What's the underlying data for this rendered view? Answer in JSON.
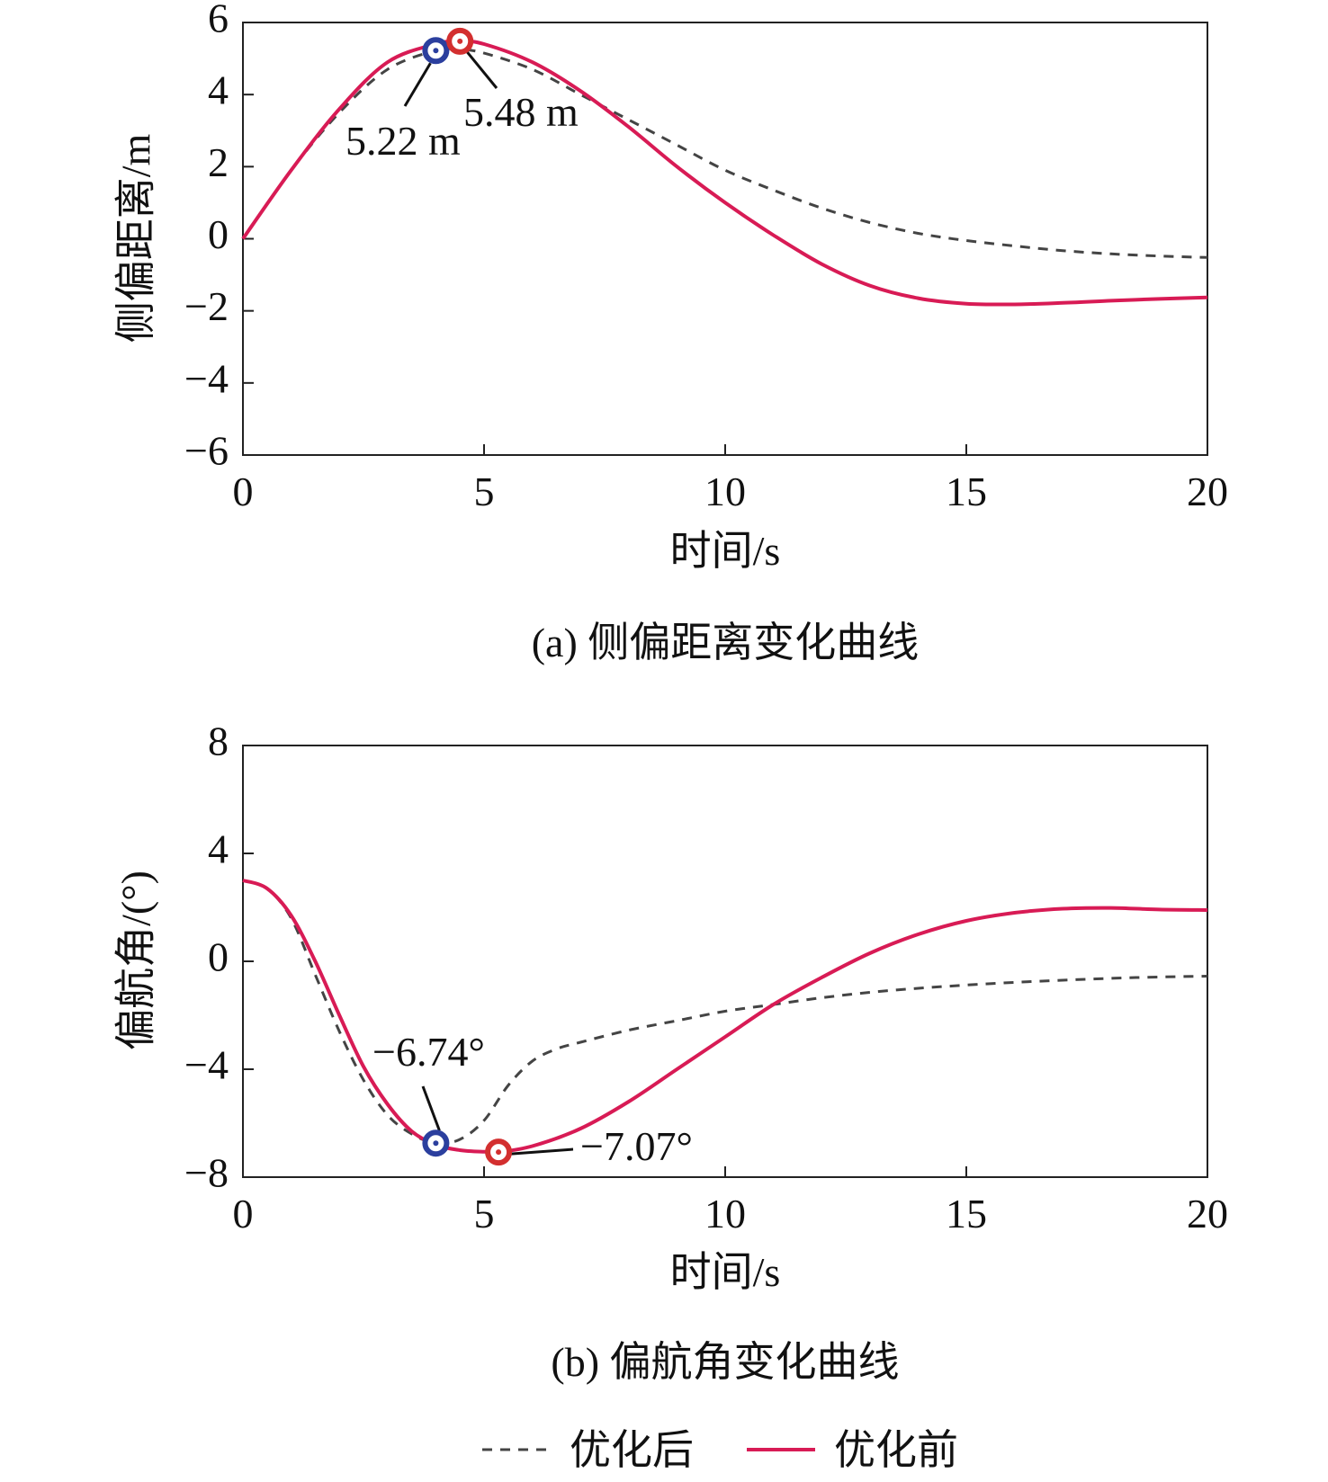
{
  "colors": {
    "before": "#d81b55",
    "after": "#444444",
    "marker_before": "#d32f2f",
    "marker_after": "#2b3f9e"
  },
  "legend": {
    "after_label": "优化后",
    "before_label": "优化前"
  },
  "chart_data": [
    {
      "type": "line",
      "caption": "(a) 侧偏距离变化曲线",
      "xlabel": "时间/s",
      "ylabel": "侧偏距离/m",
      "xlim": [
        0,
        20
      ],
      "ylim": [
        -6,
        6
      ],
      "xticks": [
        0,
        5,
        10,
        15,
        20
      ],
      "yticks": [
        6,
        4,
        2,
        0,
        -2,
        -4,
        -6
      ],
      "ytick_labels": [
        "6",
        "4",
        "2",
        "0",
        "−2",
        "−4",
        "−6"
      ],
      "grid": false,
      "series": [
        {
          "name": "优化前",
          "style": "solid",
          "x": [
            0,
            1,
            2,
            3,
            4,
            4.5,
            5,
            6,
            7,
            8,
            9,
            10,
            11,
            12,
            13,
            14,
            15,
            16,
            17,
            18,
            19,
            20
          ],
          "y": [
            0,
            1.9,
            3.6,
            4.9,
            5.4,
            5.48,
            5.4,
            4.9,
            4.1,
            3.1,
            2.0,
            1.0,
            0.1,
            -0.7,
            -1.3,
            -1.65,
            -1.8,
            -1.82,
            -1.78,
            -1.72,
            -1.67,
            -1.63
          ]
        },
        {
          "name": "优化后",
          "style": "dashed",
          "x": [
            0,
            1,
            2,
            3,
            4,
            4.5,
            5,
            6,
            7,
            8,
            9,
            10,
            11,
            12,
            13,
            14,
            15,
            16,
            17,
            18,
            19,
            20
          ],
          "y": [
            0,
            1.9,
            3.5,
            4.7,
            5.22,
            5.25,
            5.15,
            4.7,
            4.0,
            3.3,
            2.6,
            1.9,
            1.35,
            0.85,
            0.45,
            0.15,
            -0.05,
            -0.2,
            -0.33,
            -0.42,
            -0.48,
            -0.52
          ]
        }
      ],
      "annotations": [
        {
          "text": "5.22 m",
          "x": 4.0,
          "y": 5.22,
          "series": "优化后"
        },
        {
          "text": "5.48 m",
          "x": 4.5,
          "y": 5.48,
          "series": "优化前"
        }
      ]
    },
    {
      "type": "line",
      "caption": "(b) 偏航角变化曲线",
      "xlabel": "时间/s",
      "ylabel": "偏航角/(°)",
      "xlim": [
        0,
        20
      ],
      "ylim": [
        -8,
        8
      ],
      "xticks": [
        0,
        5,
        10,
        15,
        20
      ],
      "yticks": [
        8,
        4,
        0,
        -4,
        -8
      ],
      "ytick_labels": [
        "8",
        "4",
        "0",
        "−4",
        "−8"
      ],
      "grid": false,
      "series": [
        {
          "name": "优化前",
          "style": "solid",
          "x": [
            0,
            0.5,
            1,
            1.5,
            2,
            2.5,
            3,
            3.5,
            4,
            4.5,
            5,
            5.3,
            6,
            7,
            8,
            9,
            10,
            11,
            12,
            13,
            14,
            15,
            16,
            17,
            18,
            19,
            20
          ],
          "y": [
            3.0,
            2.7,
            1.7,
            0.0,
            -2.0,
            -3.9,
            -5.3,
            -6.3,
            -6.8,
            -7.0,
            -7.06,
            -7.07,
            -6.85,
            -6.2,
            -5.2,
            -4.0,
            -2.8,
            -1.6,
            -0.6,
            0.3,
            1.0,
            1.5,
            1.8,
            1.95,
            1.98,
            1.92,
            1.9
          ]
        },
        {
          "name": "优化后",
          "style": "dashed",
          "x": [
            0,
            0.5,
            1,
            1.5,
            2,
            2.5,
            3,
            3.5,
            4,
            4.5,
            5,
            5.5,
            6,
            6.5,
            7,
            8,
            9,
            10,
            11,
            12,
            13,
            14,
            15,
            16,
            17,
            18,
            19,
            20
          ],
          "y": [
            3.0,
            2.7,
            1.6,
            -0.5,
            -2.6,
            -4.4,
            -5.7,
            -6.4,
            -6.74,
            -6.6,
            -5.9,
            -4.6,
            -3.7,
            -3.25,
            -3.0,
            -2.55,
            -2.2,
            -1.85,
            -1.6,
            -1.35,
            -1.15,
            -1.0,
            -0.88,
            -0.78,
            -0.7,
            -0.63,
            -0.58,
            -0.55
          ]
        }
      ],
      "annotations": [
        {
          "text": "−6.74°",
          "x": 4.0,
          "y": -6.74,
          "series": "优化后"
        },
        {
          "text": "−7.07°",
          "x": 5.3,
          "y": -7.07,
          "series": "优化前"
        }
      ]
    }
  ]
}
